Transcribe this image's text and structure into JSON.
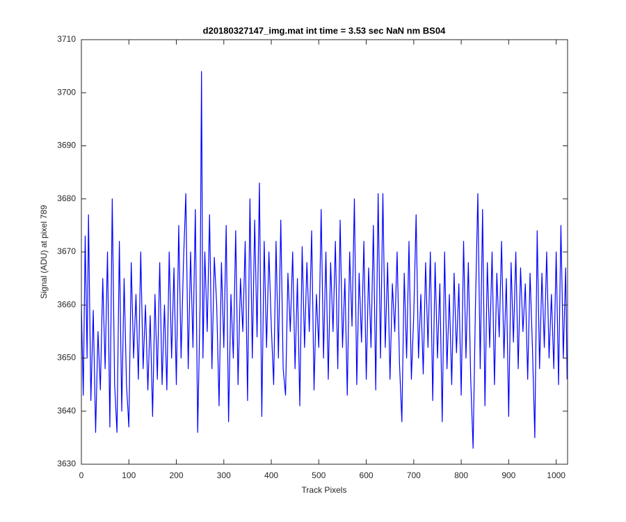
{
  "chart_data": {
    "type": "line",
    "title": "d20180327147_img.mat int time = 3.53 sec  NaN nm BS04",
    "xlabel": "Track Pixels",
    "ylabel": "Signal (ADU) at pixel 789",
    "xlim": [
      0,
      1024
    ],
    "ylim": [
      3630,
      3710
    ],
    "xticks": [
      0,
      100,
      200,
      300,
      400,
      500,
      600,
      700,
      800,
      900,
      1000
    ],
    "yticks": [
      3630,
      3640,
      3650,
      3660,
      3670,
      3680,
      3690,
      3700,
      3710
    ],
    "grid": false,
    "x": [
      0,
      4,
      8,
      12,
      15,
      20,
      25,
      30,
      35,
      40,
      45,
      50,
      55,
      60,
      65,
      70,
      75,
      80,
      85,
      90,
      95,
      100,
      105,
      110,
      115,
      120,
      125,
      130,
      135,
      140,
      145,
      150,
      155,
      160,
      165,
      170,
      175,
      180,
      185,
      190,
      195,
      200,
      205,
      210,
      215,
      220,
      225,
      230,
      235,
      240,
      245,
      250,
      253,
      256,
      260,
      265,
      270,
      275,
      280,
      285,
      290,
      295,
      300,
      305,
      310,
      315,
      320,
      325,
      330,
      335,
      340,
      345,
      350,
      355,
      360,
      365,
      370,
      375,
      380,
      385,
      390,
      395,
      400,
      405,
      410,
      415,
      420,
      425,
      430,
      435,
      440,
      445,
      450,
      455,
      460,
      465,
      470,
      475,
      480,
      485,
      490,
      495,
      500,
      505,
      510,
      515,
      520,
      525,
      530,
      535,
      540,
      545,
      550,
      555,
      560,
      565,
      570,
      575,
      580,
      585,
      590,
      595,
      600,
      605,
      610,
      615,
      620,
      625,
      630,
      635,
      640,
      645,
      650,
      655,
      660,
      665,
      670,
      675,
      680,
      685,
      690,
      695,
      700,
      705,
      710,
      715,
      720,
      725,
      730,
      735,
      740,
      745,
      750,
      755,
      760,
      765,
      770,
      775,
      780,
      785,
      790,
      795,
      800,
      805,
      810,
      815,
      820,
      825,
      830,
      835,
      840,
      845,
      850,
      855,
      860,
      865,
      870,
      875,
      880,
      885,
      890,
      895,
      900,
      905,
      910,
      915,
      920,
      925,
      930,
      935,
      940,
      945,
      950,
      955,
      960,
      965,
      970,
      975,
      980,
      985,
      990,
      995,
      1000,
      1005,
      1010,
      1015,
      1020,
      1023
    ],
    "series": [
      {
        "color": "#0000ff",
        "values": [
          3660,
          3643,
          3673,
          3650,
          3677,
          3642,
          3659,
          3636,
          3655,
          3644,
          3665,
          3648,
          3670,
          3637,
          3680,
          3645,
          3636,
          3672,
          3640,
          3665,
          3645,
          3637,
          3668,
          3650,
          3662,
          3646,
          3670,
          3648,
          3660,
          3644,
          3658,
          3639,
          3662,
          3646,
          3668,
          3645,
          3660,
          3644,
          3670,
          3650,
          3667,
          3645,
          3675,
          3650,
          3668,
          3681,
          3648,
          3670,
          3652,
          3678,
          3636,
          3660,
          3704,
          3650,
          3670,
          3655,
          3677,
          3648,
          3669,
          3660,
          3641,
          3668,
          3652,
          3675,
          3638,
          3662,
          3650,
          3674,
          3645,
          3665,
          3655,
          3672,
          3642,
          3680,
          3650,
          3676,
          3654,
          3683,
          3639,
          3672,
          3652,
          3670,
          3656,
          3645,
          3672,
          3650,
          3676,
          3648,
          3643,
          3666,
          3655,
          3670,
          3648,
          3665,
          3641,
          3671,
          3652,
          3668,
          3655,
          3674,
          3644,
          3662,
          3652,
          3678,
          3650,
          3670,
          3646,
          3668,
          3655,
          3672,
          3648,
          3676,
          3652,
          3665,
          3643,
          3670,
          3656,
          3680,
          3645,
          3666,
          3653,
          3672,
          3646,
          3667,
          3652,
          3675,
          3644,
          3681,
          3650,
          3681,
          3652,
          3668,
          3646,
          3664,
          3655,
          3670,
          3649,
          3638,
          3666,
          3650,
          3672,
          3646,
          3658,
          3677,
          3650,
          3662,
          3647,
          3668,
          3652,
          3670,
          3642,
          3668,
          3650,
          3664,
          3638,
          3670,
          3648,
          3662,
          3645,
          3666,
          3651,
          3664,
          3643,
          3672,
          3650,
          3668,
          3646,
          3633,
          3660,
          3681,
          3648,
          3678,
          3641,
          3668,
          3652,
          3670,
          3645,
          3666,
          3654,
          3672,
          3650,
          3665,
          3639,
          3668,
          3653,
          3670,
          3648,
          3667,
          3655,
          3664,
          3646,
          3666,
          3652,
          3635,
          3674,
          3648,
          3666,
          3652,
          3670,
          3650,
          3662,
          3648,
          3670,
          3645,
          3675,
          3650,
          3667,
          3646
        ]
      }
    ]
  }
}
